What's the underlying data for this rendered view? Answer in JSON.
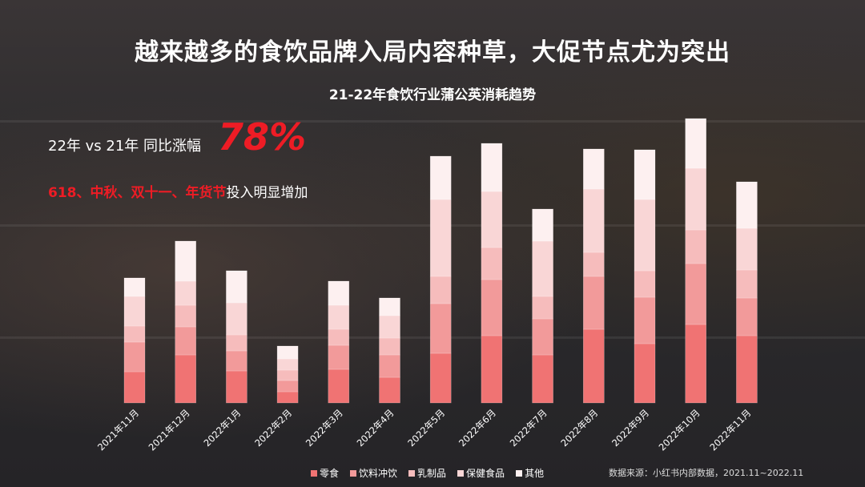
{
  "title": "越来越多的食饮品牌入局内容种草，大促节点尤为突出",
  "subtitle": "21-22年食饮行业蒲公英消耗趋势",
  "yoy_label": "22年 vs 21年 同比涨幅",
  "yoy_value": "78%",
  "festivals_highlight": "618、中秋、双十一、年货节",
  "festivals_rest": "投入明显增加",
  "source": "数据来源：小红书内部数据，2021.11~2022.11",
  "colors": {
    "accent": "#ee1c25",
    "series": [
      "#f07373",
      "#f29a9a",
      "#f6bcbc",
      "#f9d6d6",
      "#fdf0f0"
    ]
  },
  "chart_data": {
    "type": "bar",
    "stacked": true,
    "categories": [
      "2021年11月",
      "2021年12月",
      "2022年1月",
      "2022年2月",
      "2022年3月",
      "2022年4月",
      "2022年5月",
      "2022年6月",
      "2022年7月",
      "2022年8月",
      "2022年9月",
      "2022年10月",
      "2022年11月"
    ],
    "series": [
      {
        "name": "零食",
        "values": [
          39,
          60,
          40,
          14,
          42,
          32,
          62,
          84,
          60,
          92,
          74,
          98,
          84
        ]
      },
      {
        "name": "饮料冲饮",
        "values": [
          37,
          35,
          25,
          14,
          30,
          28,
          62,
          70,
          45,
          66,
          58,
          76,
          47
        ]
      },
      {
        "name": "乳制品",
        "values": [
          20,
          27,
          20,
          13,
          20,
          21,
          34,
          40,
          28,
          30,
          33,
          42,
          35
        ]
      },
      {
        "name": "保健食品",
        "values": [
          37,
          30,
          40,
          14,
          30,
          28,
          96,
          70,
          69,
          79,
          89,
          77,
          52
        ]
      },
      {
        "name": "其他",
        "values": [
          23,
          50,
          40,
          16,
          30,
          22,
          54,
          60,
          40,
          50,
          62,
          62,
          58
        ]
      }
    ],
    "ylim": [
      0,
      360
    ],
    "grid": false,
    "legend_position": "bottom"
  }
}
